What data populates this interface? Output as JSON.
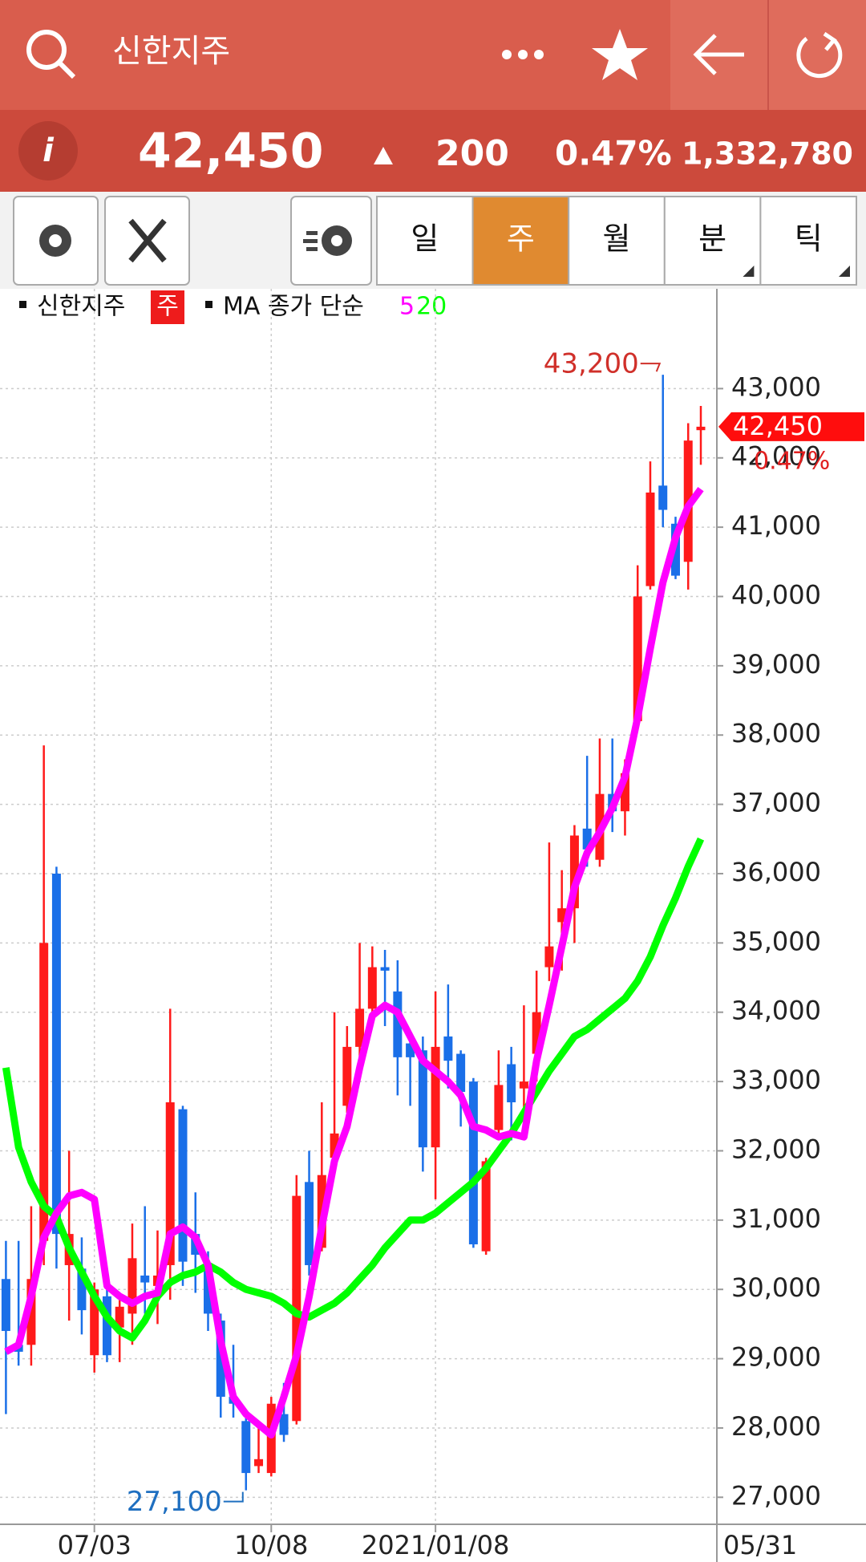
{
  "header": {
    "title": "신한지주"
  },
  "quote": {
    "info": "i",
    "price": "42,450",
    "change": "200",
    "change_pct": "0.47%",
    "volume": "1,332,780"
  },
  "toolbar": {
    "periods": [
      "일",
      "주",
      "월",
      "분",
      "틱"
    ],
    "active_index": 1
  },
  "chart_data": {
    "type": "candlestick",
    "legend": {
      "name": "신한지주",
      "badge": "주",
      "ma_label": "MA 종가 단순"
    },
    "categories": [
      null,
      null,
      null,
      null,
      null,
      null,
      null,
      "07/03",
      null,
      null,
      null,
      null,
      null,
      null,
      null,
      null,
      null,
      null,
      null,
      null,
      null,
      "10/08",
      null,
      null,
      null,
      null,
      null,
      null,
      null,
      null,
      null,
      null,
      null,
      null,
      "2021/01/08",
      null,
      null,
      null,
      null,
      null,
      null,
      null,
      null,
      null,
      null,
      null,
      null,
      null,
      null,
      null,
      null,
      null,
      null,
      null,
      null,
      "05/31"
    ],
    "open": [
      30150,
      29200,
      29200,
      30700,
      36000,
      30350,
      30300,
      29050,
      29900,
      29450,
      29650,
      30200,
      30050,
      30350,
      32600,
      30800,
      30350,
      29550,
      28450,
      28100,
      27450,
      27350,
      28200,
      28100,
      31550,
      30600,
      31900,
      32650,
      33500,
      34050,
      34650,
      34300,
      33550,
      33450,
      32050,
      33650,
      33400,
      33000,
      30550,
      32300,
      33250,
      32900,
      33400,
      34650,
      35300,
      35500,
      36650,
      36200,
      37150,
      36900,
      38200,
      40150,
      41600,
      41050,
      40500,
      42400
    ],
    "high": [
      30700,
      30700,
      31200,
      37850,
      36100,
      32000,
      30750,
      30100,
      30050,
      29850,
      30950,
      31200,
      30850,
      34050,
      32650,
      31400,
      30550,
      29650,
      29200,
      28150,
      28000,
      28450,
      28650,
      31650,
      32000,
      32700,
      34000,
      33800,
      35000,
      34950,
      34900,
      34750,
      33650,
      33650,
      34300,
      34400,
      33450,
      33050,
      31900,
      33450,
      33500,
      34100,
      34600,
      36450,
      36050,
      36700,
      37700,
      37950,
      37950,
      37650,
      40450,
      41950,
      43200,
      41150,
      42500,
      42750
    ],
    "low": [
      28200,
      28900,
      28900,
      30350,
      30300,
      29550,
      29350,
      28800,
      28950,
      28950,
      29200,
      29650,
      29500,
      29850,
      30050,
      29950,
      29400,
      28150,
      28150,
      27100,
      27350,
      27300,
      27800,
      28050,
      30200,
      30550,
      31800,
      32550,
      33350,
      33800,
      33800,
      32800,
      32650,
      31700,
      31300,
      32900,
      32350,
      30600,
      30500,
      32250,
      32150,
      32400,
      33000,
      34450,
      34600,
      35000,
      36100,
      36100,
      36600,
      36550,
      38100,
      40100,
      41000,
      40250,
      40100,
      41900
    ],
    "close": [
      29400,
      29100,
      30150,
      35000,
      30800,
      30800,
      29700,
      30000,
      29050,
      29750,
      30450,
      30100,
      30200,
      32700,
      30400,
      30500,
      29650,
      28450,
      28350,
      27350,
      27550,
      28350,
      27900,
      31350,
      30350,
      31650,
      32250,
      33500,
      34050,
      34650,
      34600,
      33350,
      33350,
      32050,
      33500,
      33300,
      32850,
      30650,
      31850,
      32950,
      32700,
      33000,
      34000,
      34950,
      35500,
      36550,
      36350,
      37150,
      36900,
      37450,
      40000,
      41500,
      41250,
      40300,
      42250,
      42450
    ],
    "up_color": "#ff1a1a",
    "down_color": "#1a6fe8",
    "series": [
      {
        "name": "5",
        "color": "#ff00ff",
        "values": [
          29100,
          29200,
          29900,
          30750,
          31100,
          31350,
          31400,
          31300,
          30050,
          29900,
          29800,
          29900,
          29950,
          30800,
          30900,
          30750,
          30350,
          29250,
          28450,
          28200,
          28050,
          27900,
          28450,
          29050,
          29900,
          30900,
          31850,
          32350,
          33200,
          33950,
          34100,
          34000,
          33650,
          33300,
          33150,
          33000,
          32800,
          32350,
          32300,
          32200,
          32250,
          32200,
          33300,
          34100,
          34950,
          35800,
          36300,
          36600,
          36950,
          37400,
          38250,
          39250,
          40200,
          40850,
          41300,
          41550
        ]
      },
      {
        "name": "20",
        "color": "#00ff00",
        "values": [
          33200,
          32050,
          31550,
          31200,
          31050,
          30600,
          30250,
          29900,
          29600,
          29400,
          29300,
          29550,
          29900,
          30100,
          30200,
          30250,
          30350,
          30250,
          30100,
          30000,
          29950,
          29900,
          29800,
          29650,
          29600,
          29700,
          29800,
          29950,
          30150,
          30350,
          30600,
          30800,
          31000,
          31000,
          31100,
          31250,
          31400,
          31550,
          31750,
          32000,
          32250,
          32550,
          32850,
          33150,
          33400,
          33650,
          33750,
          33900,
          34050,
          34200,
          34450,
          34800,
          35250,
          35650,
          36100,
          36500
        ]
      }
    ],
    "ylim": [
      26610,
      44440
    ],
    "yticks": [
      {
        "value": 27000,
        "label": "27,000"
      },
      {
        "value": 28000,
        "label": "28,000"
      },
      {
        "value": 29000,
        "label": "29,000"
      },
      {
        "value": 30000,
        "label": "30,000"
      },
      {
        "value": 31000,
        "label": "31,000"
      },
      {
        "value": 32000,
        "label": "32,000"
      },
      {
        "value": 33000,
        "label": "33,000"
      },
      {
        "value": 34000,
        "label": "34,000"
      },
      {
        "value": 35000,
        "label": "35,000"
      },
      {
        "value": 36000,
        "label": "36,000"
      },
      {
        "value": 37000,
        "label": "37,000"
      },
      {
        "value": 38000,
        "label": "38,000"
      },
      {
        "value": 39000,
        "label": "39,000"
      },
      {
        "value": 40000,
        "label": "40,000"
      },
      {
        "value": 41000,
        "label": "41,000"
      },
      {
        "value": 42000,
        "label": "42,000"
      },
      {
        "value": 43000,
        "label": "43,000"
      }
    ],
    "grid": true,
    "high_label": {
      "value": 43200,
      "label": "43,200"
    },
    "low_label": {
      "value": 27100,
      "label": "27,100"
    },
    "last_tag": {
      "value": 42450,
      "label": "42,450",
      "change": "0.47%"
    }
  }
}
